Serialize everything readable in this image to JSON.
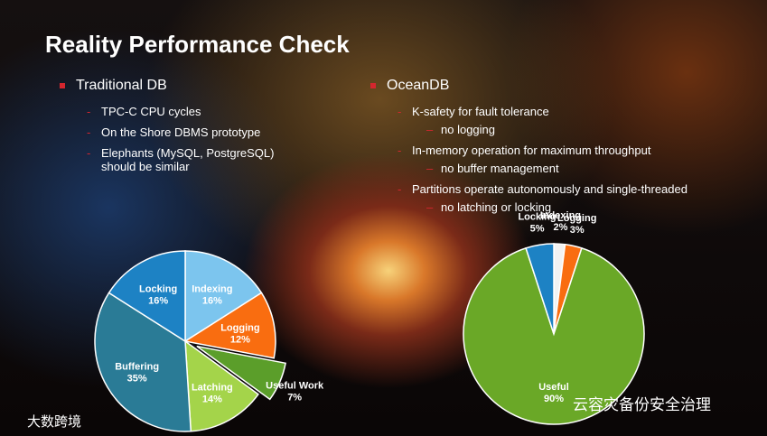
{
  "slide": {
    "title": "Reality Performance Check",
    "left": {
      "heading": "Traditional DB",
      "items": [
        "TPC-C CPU cycles",
        "On the Shore DBMS prototype",
        "Elephants (MySQL, PostgreSQL) should be similar"
      ]
    },
    "right": {
      "heading": "OceanDB",
      "items": [
        {
          "text": "K-safety for fault tolerance",
          "sub": "no logging"
        },
        {
          "text": "In-memory operation for maximum throughput",
          "sub": "no buffer management"
        },
        {
          "text": "Partitions operate autonomously and single-threaded",
          "sub": "no latching or locking"
        }
      ]
    },
    "watermarks": [
      "大数跨境",
      "云容灾备份安全治理"
    ]
  },
  "chart_data": [
    {
      "type": "pie",
      "categories": [
        "Indexing",
        "Logging",
        "Useful Work",
        "Latching",
        "Buffering",
        "Locking"
      ],
      "values": [
        16,
        12,
        7,
        14,
        35,
        16
      ],
      "value_labels": [
        "16%",
        "12%",
        "7%",
        "14%",
        "35%",
        "16%"
      ],
      "colors": [
        "#7cc5ee",
        "#f96d10",
        "#5b9e2a",
        "#a4d44a",
        "#2a7b96",
        "#1d82c4"
      ],
      "explode": 2
    },
    {
      "type": "pie",
      "categories": [
        "Indexing",
        "Logging",
        "Useful",
        "Locking"
      ],
      "values": [
        2,
        3,
        90,
        5
      ],
      "value_labels": [
        "2%",
        "3%",
        "90%",
        "5%"
      ],
      "colors": [
        "#f2f2f2",
        "#f96d10",
        "#6aa827",
        "#1d82c4"
      ]
    }
  ]
}
